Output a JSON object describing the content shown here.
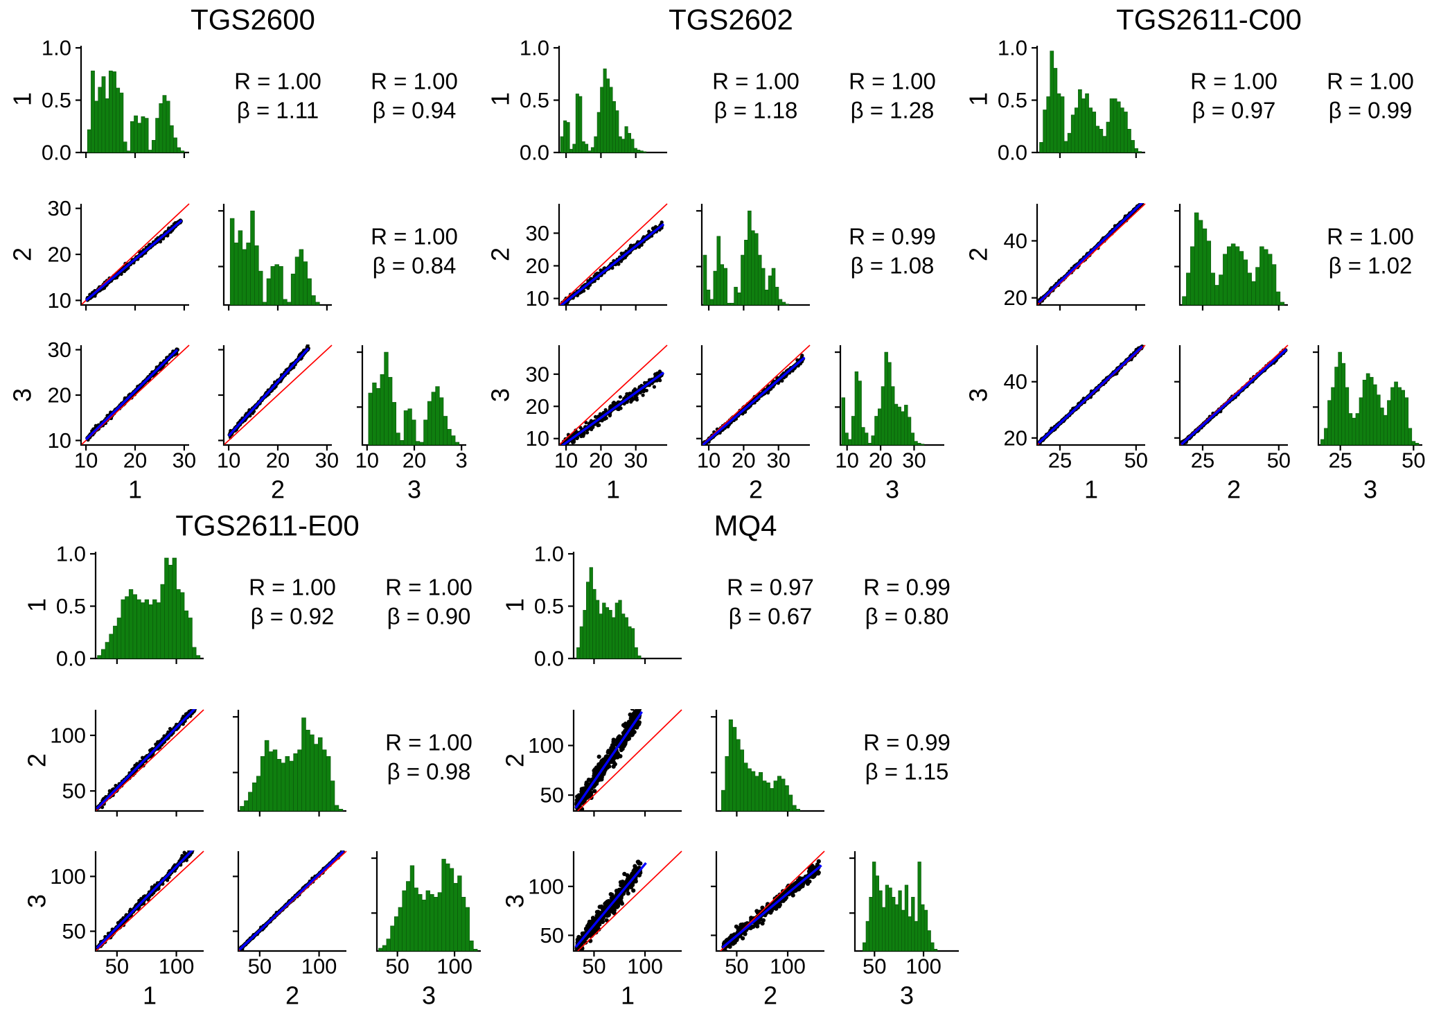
{
  "figure": {
    "background": "#ffffff",
    "colors": {
      "hist_fill": "#0f7f0f",
      "hist_edge": "#0a550a",
      "fit_line": "#0000ff",
      "identity_line": "#ff0000",
      "points": "#000000",
      "axis": "#000000"
    }
  },
  "chart_data": [
    {
      "type": "scatter-matrix",
      "title": "TGS2600",
      "replicate_row_labels": [
        "1",
        "2",
        "3"
      ],
      "replicate_axis_labels": [
        "1",
        "2",
        "3"
      ],
      "xlim": [
        9,
        31
      ],
      "ylim": [
        9,
        31
      ],
      "xticks": {
        "values": [
          10,
          20,
          30
        ],
        "labels": [
          "10",
          "20",
          "30"
        ],
        "labels_col3": [
          "10",
          "20",
          "3"
        ]
      },
      "yticks_scatter": {
        "values": [
          10,
          20,
          30
        ],
        "labels": [
          "10",
          "20",
          "30"
        ]
      },
      "yticks_density": {
        "values": [
          0,
          0.5,
          1.0
        ],
        "labels": [
          "0.0",
          "0.5",
          "1.0"
        ]
      },
      "hist_density_peak": 0.78,
      "hists": [
        {
          "span": [
            10.3,
            30.0
          ],
          "rel": [
            0.28,
            1.0,
            0.63,
            0.8,
            0.93,
            0.66,
            1.0,
            0.99,
            0.79,
            0.73,
            0.13,
            0.02,
            0.38,
            0.45,
            0.36,
            0.44,
            0.42,
            0.03,
            0.15,
            0.42,
            0.6,
            0.7,
            0.63,
            0.33,
            0.18,
            0.06,
            0.02
          ]
        },
        {
          "span": [
            10.3,
            28.5
          ],
          "rel": [
            0.92,
            0.66,
            0.79,
            0.59,
            0.66,
            1.0,
            0.63,
            0.36,
            0.03,
            0.28,
            0.41,
            0.43,
            0.41,
            0.06,
            0.03,
            0.33,
            0.51,
            0.59,
            0.46,
            0.28,
            0.1,
            0.03
          ]
        },
        {
          "span": [
            10.3,
            29.5
          ],
          "rel": [
            0.56,
            0.67,
            0.61,
            0.76,
            1.0,
            0.73,
            0.46,
            0.13,
            0.05,
            0.37,
            0.39,
            0.27,
            0.04,
            0.03,
            0.27,
            0.47,
            0.57,
            0.63,
            0.51,
            0.31,
            0.17,
            0.1,
            0.03
          ]
        }
      ],
      "scatters": {
        "21": {
          "fit": [
            10,
            10,
            29.5,
            27.4
          ],
          "xspan": [
            10.3,
            29.3
          ],
          "noise": 0.3,
          "band": 6
        },
        "31": {
          "fit": [
            10,
            10.2,
            28.6,
            30.0
          ],
          "xspan": [
            10.3,
            28.6
          ],
          "noise": 0.3,
          "band": 6
        },
        "32": {
          "fit": [
            10,
            11.0,
            26.2,
            30.3
          ],
          "xspan": [
            10.2,
            26.2
          ],
          "noise": 0.3,
          "band": 6
        }
      },
      "stats": [
        {
          "cell": "12",
          "r_text": "R = 1.00",
          "b_text": "β = 1.11"
        },
        {
          "cell": "13",
          "r_text": "R = 1.00",
          "b_text": "β = 0.94"
        },
        {
          "cell": "23",
          "r_text": "R = 1.00",
          "b_text": "β = 0.84"
        }
      ]
    },
    {
      "type": "scatter-matrix",
      "title": "TGS2602",
      "replicate_row_labels": [
        "1",
        "2",
        "3"
      ],
      "replicate_axis_labels": [
        "1",
        "2",
        "3"
      ],
      "xlim": [
        8,
        39
      ],
      "ylim": [
        8,
        39
      ],
      "xticks": {
        "values": [
          10,
          20,
          30
        ],
        "labels": [
          "10",
          "20",
          "30"
        ]
      },
      "yticks_scatter": {
        "values": [
          10,
          20,
          30
        ],
        "labels": [
          "10",
          "20",
          "30"
        ]
      },
      "yticks_density": {
        "values": [
          0,
          0.5,
          1.0
        ],
        "labels": [
          "0.0",
          "0.5",
          "1.0"
        ]
      },
      "hist_density_peak": 0.8,
      "hists": [
        {
          "span": [
            8.4,
            33.0
          ],
          "rel": [
            0.19,
            0.38,
            0.36,
            0.04,
            0.1,
            0.7,
            0.67,
            0.13,
            0.1,
            0.02,
            0.06,
            0.19,
            0.48,
            0.78,
            1.0,
            0.88,
            0.78,
            0.61,
            0.5,
            0.19,
            0.16,
            0.31,
            0.23,
            0.16,
            0.05,
            0.03,
            0.02,
            0.01
          ]
        },
        {
          "span": [
            8.4,
            33.0
          ],
          "rel": [
            0.53,
            0.16,
            0.06,
            0.36,
            0.73,
            0.43,
            0.39,
            0.02,
            0.02,
            0.19,
            0.13,
            0.53,
            0.69,
            1.0,
            0.79,
            0.76,
            0.53,
            0.39,
            0.16,
            0.31,
            0.39,
            0.19,
            0.06,
            0.03,
            0.01
          ]
        },
        {
          "span": [
            8.4,
            33.0
          ],
          "rel": [
            0.51,
            0.13,
            0.06,
            0.31,
            0.79,
            0.69,
            0.19,
            0.13,
            0.02,
            0.1,
            0.31,
            0.39,
            0.63,
            1.0,
            0.89,
            0.63,
            0.44,
            0.41,
            0.36,
            0.43,
            0.3,
            0.13,
            0.04,
            0.02,
            0.01
          ]
        }
      ],
      "scatters": {
        "21": {
          "fit": [
            8.5,
            7.8,
            38,
            32.8
          ],
          "xspan": [
            8.6,
            37.5
          ],
          "noise": 0.55,
          "band": 6
        },
        "31": {
          "fit": [
            8.5,
            7.5,
            38,
            30.5
          ],
          "xspan": [
            8.6,
            37.5
          ],
          "noise": 0.85,
          "band": 6
        },
        "32": {
          "fit": [
            8.3,
            8.0,
            37.5,
            35.2
          ],
          "xspan": [
            8.5,
            37.0
          ],
          "noise": 0.45,
          "band": 6
        }
      },
      "stats": [
        {
          "cell": "12",
          "r_text": "R = 1.00",
          "b_text": "β = 1.18"
        },
        {
          "cell": "13",
          "r_text": "R = 1.00",
          "b_text": "β = 1.28"
        },
        {
          "cell": "23",
          "r_text": "R = 0.99",
          "b_text": "β = 1.08"
        }
      ]
    },
    {
      "type": "scatter-matrix",
      "title": "TGS2611-C00",
      "replicate_row_labels": [
        "1",
        "2",
        "3"
      ],
      "replicate_axis_labels": [
        "1",
        "2",
        "3"
      ],
      "xlim": [
        17.5,
        53
      ],
      "ylim": [
        17.5,
        53
      ],
      "xticks": {
        "values": [
          25,
          50
        ],
        "labels": [
          "25",
          "50"
        ]
      },
      "yticks_scatter": {
        "values": [
          20,
          40
        ],
        "labels": [
          "20",
          "40"
        ]
      },
      "yticks_density": {
        "values": [
          0,
          0.5,
          1.0
        ],
        "labels": [
          "0.0",
          "0.5",
          "1.0"
        ]
      },
      "hist_density_peak": 0.97,
      "hists": [
        {
          "span": [
            18.3,
            51.8
          ],
          "rel": [
            0.1,
            0.42,
            0.55,
            1.0,
            0.83,
            0.58,
            0.55,
            0.11,
            0.19,
            0.37,
            0.44,
            0.62,
            0.53,
            0.58,
            0.44,
            0.4,
            0.26,
            0.23,
            0.16,
            0.3,
            0.53,
            0.53,
            0.5,
            0.44,
            0.4,
            0.23,
            0.12,
            0.04,
            0.01
          ]
        },
        {
          "span": [
            18.3,
            51.8
          ],
          "rel": [
            0.09,
            0.34,
            0.62,
            0.98,
            0.9,
            0.81,
            0.68,
            0.34,
            0.21,
            0.32,
            0.54,
            0.62,
            0.65,
            0.62,
            0.57,
            0.48,
            0.34,
            0.25,
            0.4,
            0.62,
            0.59,
            0.54,
            0.43,
            0.14,
            0.03
          ]
        },
        {
          "span": [
            18.3,
            51.8
          ],
          "rel": [
            0.06,
            0.18,
            0.48,
            0.62,
            0.84,
            1.0,
            0.88,
            0.62,
            0.34,
            0.29,
            0.34,
            0.51,
            0.7,
            0.77,
            0.73,
            0.65,
            0.54,
            0.4,
            0.32,
            0.48,
            0.62,
            0.68,
            0.62,
            0.59,
            0.51,
            0.18,
            0.04,
            0.02
          ]
        }
      ],
      "scatters": {
        "21": {
          "fit": [
            18,
            18.4,
            52,
            53.4
          ],
          "xspan": [
            18.2,
            52.0
          ],
          "noise": 0.35,
          "band": 6
        },
        "31": {
          "fit": [
            18,
            18.2,
            52,
            52.5
          ],
          "xspan": [
            18.2,
            52.0
          ],
          "noise": 0.35,
          "band": 6
        },
        "32": {
          "fit": [
            18,
            17.7,
            52.5,
            51.5
          ],
          "xspan": [
            18.2,
            52.2
          ],
          "noise": 0.3,
          "band": 6
        }
      },
      "stats": [
        {
          "cell": "12",
          "r_text": "R = 1.00",
          "b_text": "β = 0.97"
        },
        {
          "cell": "13",
          "r_text": "R = 1.00",
          "b_text": "β = 0.99"
        },
        {
          "cell": "23",
          "r_text": "R = 1.00",
          "b_text": "β = 1.02"
        }
      ]
    },
    {
      "type": "scatter-matrix",
      "title": "TGS2611-E00",
      "replicate_row_labels": [
        "1",
        "2",
        "3"
      ],
      "replicate_axis_labels": [
        "1",
        "2",
        "3"
      ],
      "xlim": [
        32,
        123
      ],
      "ylim": [
        32,
        123
      ],
      "xticks": {
        "values": [
          50,
          100
        ],
        "labels": [
          "50",
          "100"
        ]
      },
      "yticks_scatter": {
        "values": [
          50,
          100
        ],
        "labels": [
          "50",
          "100"
        ]
      },
      "yticks_density": {
        "values": [
          0,
          0.5,
          1.0
        ],
        "labels": [
          "0.0",
          "0.5",
          "1.0"
        ]
      },
      "hist_density_peak": 0.97,
      "hists": [
        {
          "span": [
            33.5,
            120.0
          ],
          "rel": [
            0.03,
            0.09,
            0.16,
            0.24,
            0.32,
            0.4,
            0.58,
            0.61,
            0.68,
            0.63,
            0.58,
            0.55,
            0.58,
            0.53,
            0.58,
            0.55,
            0.73,
            0.99,
            0.92,
            0.99,
            0.68,
            0.65,
            0.47,
            0.4,
            0.11,
            0.03
          ]
        },
        {
          "span": [
            33.5,
            120.0
          ],
          "rel": [
            0.05,
            0.11,
            0.2,
            0.3,
            0.37,
            0.58,
            0.75,
            0.63,
            0.65,
            0.55,
            0.51,
            0.58,
            0.53,
            0.61,
            0.65,
            0.99,
            0.86,
            0.81,
            0.71,
            0.78,
            0.65,
            0.58,
            0.32,
            0.06,
            0.02
          ]
        },
        {
          "span": [
            33.5,
            120.0
          ],
          "rel": [
            0.03,
            0.06,
            0.13,
            0.27,
            0.37,
            0.47,
            0.65,
            0.75,
            0.92,
            0.68,
            0.61,
            0.55,
            0.65,
            0.61,
            0.58,
            0.63,
            0.99,
            0.94,
            0.89,
            0.73,
            0.81,
            0.58,
            0.47,
            0.11,
            0.02
          ]
        }
      ],
      "scatters": {
        "21": {
          "fit": [
            33,
            34,
            116,
            124.5
          ],
          "xspan": [
            33.5,
            115.5
          ],
          "noise": 1.6,
          "band": 6
        },
        "31": {
          "fit": [
            33,
            34.5,
            113.5,
            124
          ],
          "xspan": [
            33.5,
            113.5
          ],
          "noise": 1.6,
          "band": 6
        },
        "32": {
          "fit": [
            33,
            33.2,
            120.5,
            123
          ],
          "xspan": [
            33.5,
            120.0
          ],
          "noise": 0.7,
          "band": 6
        }
      },
      "stats": [
        {
          "cell": "12",
          "r_text": "R = 1.00",
          "b_text": "β = 0.92"
        },
        {
          "cell": "13",
          "r_text": "R = 1.00",
          "b_text": "β = 0.90"
        },
        {
          "cell": "23",
          "r_text": "R = 1.00",
          "b_text": "β = 0.98"
        }
      ]
    },
    {
      "type": "scatter-matrix",
      "title": "MQ4",
      "replicate_row_labels": [
        "1",
        "2",
        "3"
      ],
      "replicate_axis_labels": [
        "1",
        "2",
        "3"
      ],
      "xlim": [
        30,
        136
      ],
      "ylim": [
        34,
        136
      ],
      "xticks": {
        "values": [
          50,
          100
        ],
        "labels": [
          "50",
          "100"
        ]
      },
      "yticks_scatter": {
        "values": [
          50,
          100
        ],
        "labels": [
          "50",
          "100"
        ]
      },
      "yticks_density": {
        "values": [
          0,
          0.5,
          1.0
        ],
        "labels": [
          "0.0",
          "0.5",
          "1.0"
        ]
      },
      "hist_density_peak": 0.87,
      "hists": [
        {
          "span": [
            33,
            96
          ],
          "rel": [
            0.12,
            0.35,
            0.53,
            0.84,
            1.0,
            0.76,
            0.64,
            0.49,
            0.61,
            0.56,
            0.53,
            0.45,
            0.61,
            0.64,
            0.49,
            0.45,
            0.35,
            0.33,
            0.12,
            0.03
          ]
        },
        {
          "span": [
            35,
            112
          ],
          "rel": [
            0.22,
            0.58,
            0.97,
            0.89,
            0.76,
            0.65,
            0.51,
            0.45,
            0.42,
            0.37,
            0.41,
            0.32,
            0.3,
            0.24,
            0.32,
            0.37,
            0.34,
            0.27,
            0.17,
            0.06,
            0.02
          ]
        },
        {
          "span": [
            38,
            114
          ],
          "rel": [
            0.09,
            0.32,
            0.58,
            0.96,
            0.81,
            0.65,
            0.47,
            0.71,
            0.68,
            0.58,
            0.5,
            0.65,
            0.44,
            0.71,
            0.37,
            0.58,
            0.32,
            0.96,
            0.5,
            0.44,
            0.22,
            0.09,
            0.02
          ]
        }
      ],
      "scatters": {
        "21": {
          "fit": [
            32,
            37,
            97,
            134
          ],
          "xspan": [
            33,
            95
          ],
          "noise": 5.5,
          "band": 0
        },
        "31": {
          "fit": [
            32,
            38,
            101,
            124
          ],
          "xspan": [
            33,
            96
          ],
          "noise": 4.5,
          "band": 0
        },
        "32": {
          "fit": [
            36,
            37.5,
            133,
            121.5
          ],
          "xspan": [
            37,
            131
          ],
          "noise": 3.0,
          "band": 0
        }
      },
      "stats": [
        {
          "cell": "12",
          "r_text": "R = 0.97",
          "b_text": "β = 0.67"
        },
        {
          "cell": "13",
          "r_text": "R = 0.99",
          "b_text": "β = 0.80"
        },
        {
          "cell": "23",
          "r_text": "R = 0.99",
          "b_text": "β = 1.15"
        }
      ]
    }
  ]
}
